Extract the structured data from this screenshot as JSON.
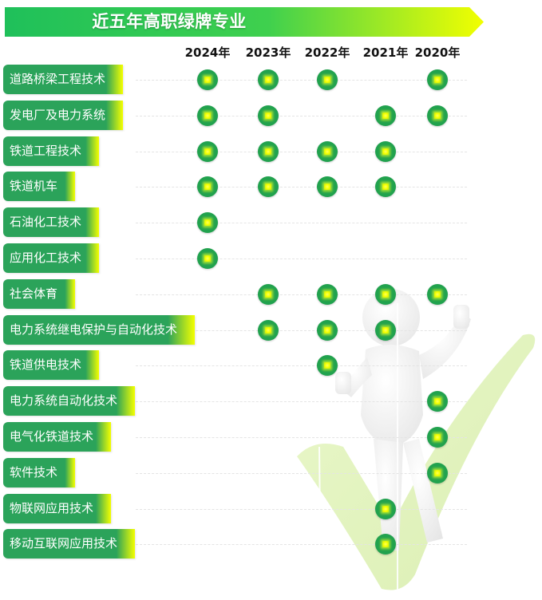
{
  "title": "近五年高职绿牌专业",
  "colors": {
    "banner_start": "#1fc05a",
    "banner_end": "#f2ff00",
    "label_green": "#2ba35a",
    "label_accent": "#f4ff00",
    "dot": "#21a24e",
    "dot_center": "#f4ff00"
  },
  "chart_data": {
    "type": "table",
    "columns": [
      "2024年",
      "2023年",
      "2022年",
      "2021年",
      "2020年"
    ],
    "rows": [
      {
        "label": "道路桥梁工程技术",
        "marks": [
          1,
          1,
          1,
          0,
          1
        ]
      },
      {
        "label": "发电厂及电力系统",
        "marks": [
          1,
          1,
          0,
          1,
          1
        ]
      },
      {
        "label": "铁道工程技术",
        "marks": [
          1,
          1,
          1,
          1,
          0
        ]
      },
      {
        "label": "铁道机车",
        "marks": [
          1,
          1,
          1,
          1,
          0
        ]
      },
      {
        "label": "石油化工技术",
        "marks": [
          1,
          0,
          0,
          0,
          0
        ]
      },
      {
        "label": "应用化工技术",
        "marks": [
          1,
          0,
          0,
          0,
          0
        ]
      },
      {
        "label": "社会体育",
        "marks": [
          0,
          1,
          1,
          1,
          1
        ]
      },
      {
        "label": "电力系统继电保护与自动化技术",
        "marks": [
          0,
          1,
          1,
          1,
          0
        ]
      },
      {
        "label": "铁道供电技术",
        "marks": [
          0,
          0,
          1,
          0,
          0
        ]
      },
      {
        "label": "电力系统自动化技术",
        "marks": [
          0,
          0,
          0,
          0,
          1
        ]
      },
      {
        "label": "电气化铁道技术",
        "marks": [
          0,
          0,
          0,
          0,
          1
        ]
      },
      {
        "label": "软件技术",
        "marks": [
          0,
          0,
          0,
          0,
          1
        ]
      },
      {
        "label": "物联网应用技术",
        "marks": [
          0,
          0,
          0,
          1,
          0
        ]
      },
      {
        "label": "移动互联网应用技术",
        "marks": [
          0,
          0,
          0,
          1,
          0
        ]
      }
    ]
  }
}
